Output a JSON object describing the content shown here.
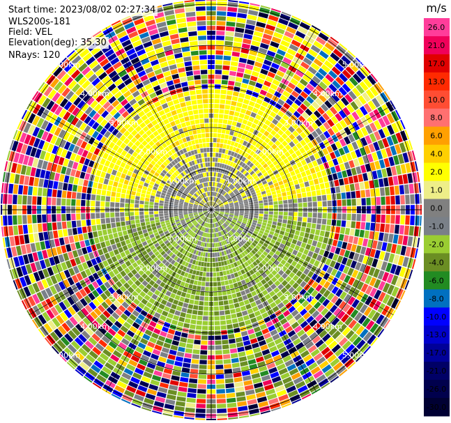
{
  "info": {
    "start_time": "Start time: 2023/08/02 02:27:34",
    "instrument": "WLS200s-181",
    "field": "Field: VEL",
    "elevation": "Elevation(deg): 35.30",
    "nrays": "NRays: 120"
  },
  "chart_data": {
    "type": "heatmap",
    "projection": "polar PPI (plan position indicator)",
    "field": "VEL",
    "unit": "m/s",
    "n_rays": 120,
    "elevation_deg": 35.3,
    "ring_labels": [
      "1.00km",
      "2.00km",
      "3.00km",
      "4.00km",
      "5.00km"
    ],
    "range_rings_km": [
      1,
      2,
      3,
      4,
      5
    ],
    "max_range_km": 5.1,
    "colorbar": {
      "ticks": [
        "26.0",
        "21.0",
        "17.0",
        "13.0",
        "10.0",
        "8.0",
        "6.0",
        "4.0",
        "2.0",
        "1.0",
        "0.0",
        "-1.0",
        "-2.0",
        "-4.0",
        "-6.0",
        "-8.0",
        "-10.0",
        "-13.0",
        "-17.0",
        "-21.0",
        "-26.0",
        "-30.0"
      ],
      "colors": [
        "#ff3d9a",
        "#f0005a",
        "#e00000",
        "#ff2a00",
        "#ff4d33",
        "#ff7070",
        "#ffa000",
        "#ffd000",
        "#ffff00",
        "#eeee88",
        "#808080",
        "#7a8088",
        "#9acd32",
        "#6b8e23",
        "#228b22",
        "#0070c0",
        "#0000ff",
        "#0000cc",
        "#000099",
        "#000066",
        "#00004d",
        "#000033"
      ]
    },
    "pattern_summary": {
      "inner_near_zero_km": 1.1,
      "positive_band_north_km": [
        1.2,
        2.9
      ],
      "negative_band_south_km": [
        0.8,
        3.2
      ],
      "noise_beyond_km": 2.9
    }
  }
}
